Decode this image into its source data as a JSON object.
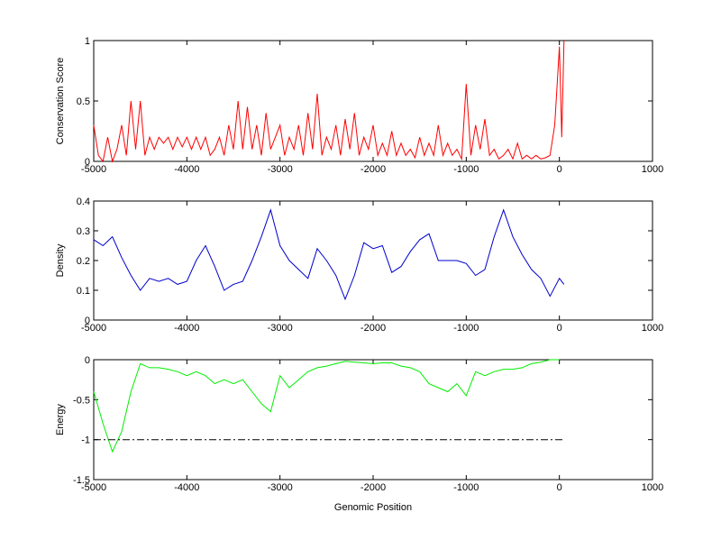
{
  "chart_data": [
    {
      "type": "line",
      "ylabel": "Conservation Score",
      "xlim": [
        -5000,
        1000
      ],
      "xticks": [
        -5000,
        -4000,
        -3000,
        -2000,
        -1000,
        0,
        1000
      ],
      "ylim": [
        0,
        1
      ],
      "yticks": [
        0,
        0.5,
        1
      ],
      "series": [
        {
          "color": "#ff0000",
          "x": [
            -5000,
            -4950,
            -4900,
            -4850,
            -4800,
            -4750,
            -4700,
            -4650,
            -4600,
            -4550,
            -4500,
            -4450,
            -4400,
            -4350,
            -4300,
            -4250,
            -4200,
            -4150,
            -4100,
            -4050,
            -4000,
            -3950,
            -3900,
            -3850,
            -3800,
            -3750,
            -3700,
            -3650,
            -3600,
            -3550,
            -3500,
            -3450,
            -3400,
            -3350,
            -3300,
            -3250,
            -3200,
            -3150,
            -3100,
            -3050,
            -3000,
            -2950,
            -2900,
            -2850,
            -2800,
            -2750,
            -2700,
            -2650,
            -2600,
            -2550,
            -2500,
            -2450,
            -2400,
            -2350,
            -2300,
            -2250,
            -2200,
            -2150,
            -2100,
            -2050,
            -2000,
            -1950,
            -1900,
            -1850,
            -1800,
            -1750,
            -1700,
            -1650,
            -1600,
            -1550,
            -1500,
            -1450,
            -1400,
            -1350,
            -1300,
            -1250,
            -1200,
            -1150,
            -1100,
            -1050,
            -1000,
            -950,
            -900,
            -850,
            -800,
            -750,
            -700,
            -650,
            -600,
            -550,
            -500,
            -450,
            -400,
            -350,
            -300,
            -250,
            -200,
            -150,
            -100,
            -50,
            0,
            25,
            50
          ],
          "values": [
            0.3,
            0.05,
            0,
            0.2,
            0,
            0.1,
            0.3,
            0.05,
            0.5,
            0.1,
            0.5,
            0.05,
            0.2,
            0.1,
            0.2,
            0.15,
            0.2,
            0.1,
            0.2,
            0.12,
            0.2,
            0.1,
            0.2,
            0.1,
            0.2,
            0.05,
            0.1,
            0.2,
            0.05,
            0.3,
            0.1,
            0.5,
            0.1,
            0.45,
            0.1,
            0.3,
            0.05,
            0.4,
            0.1,
            0.2,
            0.3,
            0.05,
            0.2,
            0.1,
            0.3,
            0.05,
            0.4,
            0.1,
            0.56,
            0.05,
            0.2,
            0.1,
            0.3,
            0.05,
            0.35,
            0.1,
            0.4,
            0.05,
            0.2,
            0.1,
            0.3,
            0.05,
            0.15,
            0.05,
            0.25,
            0.05,
            0.15,
            0.05,
            0.1,
            0.03,
            0.2,
            0.05,
            0.15,
            0.05,
            0.3,
            0.05,
            0.15,
            0.05,
            0.1,
            0.02,
            0.64,
            0.05,
            0.3,
            0.1,
            0.35,
            0.05,
            0.1,
            0.02,
            0.05,
            0.1,
            0.02,
            0.15,
            0.02,
            0.05,
            0.02,
            0.05,
            0.02,
            0.03,
            0.05,
            0.3,
            0.95,
            0.2,
            1
          ]
        }
      ]
    },
    {
      "type": "line",
      "ylabel": "Density",
      "xlim": [
        -5000,
        1000
      ],
      "xticks": [
        -5000,
        -4000,
        -3000,
        -2000,
        -1000,
        0,
        1000
      ],
      "ylim": [
        0,
        0.4
      ],
      "yticks": [
        0,
        0.1,
        0.2,
        0.3,
        0.4
      ],
      "series": [
        {
          "color": "#0000cc",
          "x": [
            -5000,
            -4900,
            -4800,
            -4700,
            -4600,
            -4500,
            -4400,
            -4300,
            -4200,
            -4100,
            -4000,
            -3900,
            -3800,
            -3700,
            -3600,
            -3500,
            -3400,
            -3300,
            -3200,
            -3100,
            -3000,
            -2900,
            -2800,
            -2700,
            -2600,
            -2500,
            -2400,
            -2300,
            -2200,
            -2100,
            -2000,
            -1900,
            -1800,
            -1700,
            -1600,
            -1500,
            -1400,
            -1300,
            -1200,
            -1100,
            -1000,
            -900,
            -800,
            -700,
            -600,
            -500,
            -400,
            -300,
            -200,
            -100,
            0,
            50
          ],
          "values": [
            0.27,
            0.25,
            0.28,
            0.21,
            0.15,
            0.1,
            0.14,
            0.13,
            0.14,
            0.12,
            0.13,
            0.2,
            0.25,
            0.18,
            0.1,
            0.12,
            0.13,
            0.2,
            0.28,
            0.37,
            0.25,
            0.2,
            0.17,
            0.14,
            0.24,
            0.2,
            0.15,
            0.07,
            0.15,
            0.26,
            0.24,
            0.25,
            0.16,
            0.18,
            0.23,
            0.27,
            0.29,
            0.2,
            0.2,
            0.2,
            0.19,
            0.15,
            0.17,
            0.28,
            0.37,
            0.28,
            0.22,
            0.17,
            0.14,
            0.08,
            0.14,
            0.12
          ]
        }
      ]
    },
    {
      "type": "line",
      "ylabel": "Energy",
      "xlabel": "Genomic Position",
      "xlim": [
        -5000,
        1000
      ],
      "xticks": [
        -5000,
        -4000,
        -3000,
        -2000,
        -1000,
        0,
        1000
      ],
      "ylim": [
        -1.5,
        0
      ],
      "yticks": [
        -1.5,
        -1,
        -0.5,
        0
      ],
      "series": [
        {
          "color": "#00ee00",
          "x": [
            -5000,
            -4900,
            -4800,
            -4700,
            -4600,
            -4500,
            -4400,
            -4300,
            -4200,
            -4100,
            -4000,
            -3900,
            -3800,
            -3700,
            -3600,
            -3500,
            -3400,
            -3300,
            -3200,
            -3100,
            -3000,
            -2900,
            -2800,
            -2700,
            -2600,
            -2500,
            -2400,
            -2300,
            -2200,
            -2100,
            -2000,
            -1900,
            -1800,
            -1700,
            -1600,
            -1500,
            -1400,
            -1300,
            -1200,
            -1100,
            -1000,
            -900,
            -800,
            -700,
            -600,
            -500,
            -400,
            -300,
            -200,
            -100,
            0
          ],
          "values": [
            -0.4,
            -0.8,
            -1.15,
            -0.9,
            -0.4,
            -0.05,
            -0.1,
            -0.1,
            -0.12,
            -0.15,
            -0.2,
            -0.15,
            -0.2,
            -0.3,
            -0.25,
            -0.3,
            -0.25,
            -0.4,
            -0.55,
            -0.65,
            -0.2,
            -0.35,
            -0.25,
            -0.15,
            -0.1,
            -0.08,
            -0.05,
            -0.02,
            -0.03,
            -0.04,
            -0.05,
            -0.04,
            -0.04,
            -0.08,
            -0.1,
            -0.15,
            -0.3,
            -0.35,
            -0.4,
            -0.3,
            -0.45,
            -0.15,
            -0.2,
            -0.15,
            -0.12,
            -0.12,
            -0.1,
            -0.05,
            -0.03,
            0,
            0
          ]
        },
        {
          "color": "#000000",
          "dash": "dashdot",
          "x": [
            -5000,
            50
          ],
          "values": [
            -1,
            -1
          ]
        }
      ]
    }
  ]
}
